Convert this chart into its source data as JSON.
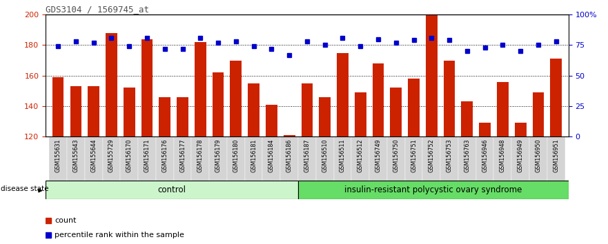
{
  "title": "GDS3104 / 1569745_at",
  "samples": [
    "GSM155631",
    "GSM155643",
    "GSM155644",
    "GSM155729",
    "GSM156170",
    "GSM156171",
    "GSM156176",
    "GSM156177",
    "GSM156178",
    "GSM156179",
    "GSM156180",
    "GSM156181",
    "GSM156184",
    "GSM156186",
    "GSM156187",
    "GSM156510",
    "GSM156511",
    "GSM156512",
    "GSM156749",
    "GSM156750",
    "GSM156751",
    "GSM156752",
    "GSM156753",
    "GSM156763",
    "GSM156946",
    "GSM156948",
    "GSM156949",
    "GSM156950",
    "GSM156951"
  ],
  "count_values": [
    159,
    153,
    153,
    188,
    152,
    184,
    146,
    146,
    182,
    162,
    170,
    155,
    141,
    121,
    155,
    146,
    175,
    149,
    168,
    152,
    158,
    200,
    170,
    143,
    129,
    156,
    129,
    149,
    171
  ],
  "percentile_values": [
    74,
    78,
    77,
    81,
    74,
    81,
    72,
    72,
    81,
    77,
    78,
    74,
    72,
    67,
    78,
    75,
    81,
    74,
    80,
    77,
    79,
    81,
    79,
    70,
    73,
    75,
    70,
    75,
    78
  ],
  "group_sizes": [
    14,
    15
  ],
  "group_label_control": "control",
  "group_label_disease": "insulin-resistant polycystic ovary syndrome",
  "ylim_left": [
    120,
    200
  ],
  "ylim_right": [
    0,
    100
  ],
  "yticks_left": [
    120,
    140,
    160,
    180,
    200
  ],
  "yticks_right": [
    0,
    25,
    50,
    75,
    100
  ],
  "ytick_right_labels": [
    "0",
    "25",
    "50",
    "75",
    "100%"
  ],
  "bar_color": "#CC2200",
  "dot_color": "#0000CC",
  "ctrl_color": "#ccf5cc",
  "disease_color": "#66dd66",
  "tick_bg_color": "#d4d4d4",
  "title_color": "#505050",
  "legend_bar_label": "count",
  "legend_dot_label": "percentile rank within the sample",
  "disease_state_label": "disease state"
}
